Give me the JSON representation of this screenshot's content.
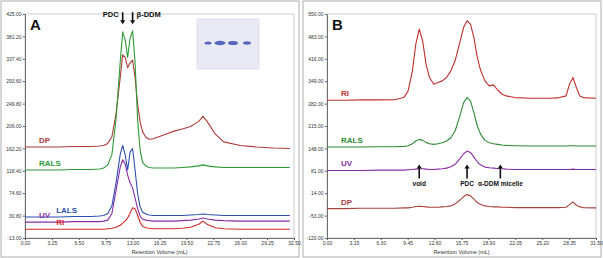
{
  "chart_data": [
    {
      "type": "line",
      "title": "A",
      "x_label": "Retention Volume (mL)",
      "x": [
        0,
        2,
        4,
        6,
        8,
        9,
        9.5,
        10,
        10.5,
        11,
        11.5,
        11.8,
        12.1,
        12.4,
        12.7,
        13,
        13.3,
        13.6,
        13.9,
        14.2,
        14.6,
        15,
        15.5,
        16,
        17,
        18,
        19,
        20,
        21,
        21.5,
        22,
        23,
        24,
        26,
        28,
        30,
        32
      ],
      "xlim": [
        0,
        32.5
      ],
      "xticks": [
        {
          "value": 0,
          "label": "0.00"
        },
        {
          "value": 3.25,
          "label": "3.25"
        },
        {
          "value": 6.5,
          "label": "6.50"
        },
        {
          "value": 9.75,
          "label": "9.75"
        },
        {
          "value": 13,
          "label": "13.00"
        },
        {
          "value": 16.25,
          "label": "16.25"
        },
        {
          "value": 19.5,
          "label": "19.50"
        },
        {
          "value": 22.75,
          "label": "22.75"
        },
        {
          "value": 26,
          "label": "26.00"
        },
        {
          "value": 29.25,
          "label": "29.25"
        },
        {
          "value": 32.5,
          "label": "32.50"
        }
      ],
      "ylim": [
        -13,
        425
      ],
      "yticks": [
        {
          "value": -13,
          "label": "-13.00"
        },
        {
          "value": 30.8,
          "label": "30.80"
        },
        {
          "value": 74.6,
          "label": "74.60"
        },
        {
          "value": 118.4,
          "label": "118.40"
        },
        {
          "value": 162.2,
          "label": "162.20"
        },
        {
          "value": 206,
          "label": "206.00"
        },
        {
          "value": 249.8,
          "label": "249.80"
        },
        {
          "value": 293.6,
          "label": "293.60"
        },
        {
          "value": 337.4,
          "label": "337.40"
        },
        {
          "value": 381.2,
          "label": "381.20"
        },
        {
          "value": 425,
          "label": "425.00"
        }
      ],
      "series": [
        {
          "name": "DP",
          "color": "#b03a3a",
          "values": [
            165,
            165,
            165,
            166,
            166,
            167,
            168,
            172,
            185,
            230,
            300,
            345,
            340,
            320,
            330,
            335,
            300,
            250,
            215,
            195,
            184,
            180,
            181,
            184,
            190,
            196,
            200,
            205,
            215,
            225,
            215,
            190,
            175,
            168,
            165,
            163,
            162
          ]
        },
        {
          "name": "RALS",
          "color": "#2e9a36",
          "values": [
            120,
            120,
            120,
            121,
            121,
            122,
            124,
            130,
            150,
            220,
            330,
            390,
            375,
            340,
            378,
            392,
            330,
            220,
            160,
            135,
            128,
            125,
            124,
            124,
            124,
            124,
            125,
            126,
            128,
            130,
            128,
            126,
            125,
            125,
            125,
            125,
            125
          ]
        },
        {
          "name": "UV",
          "color": "#8a2ca8",
          "values": [
            18,
            18,
            18,
            19,
            19,
            19,
            20,
            22,
            35,
            80,
            125,
            140,
            132,
            110,
            95,
            85,
            65,
            45,
            30,
            24,
            22,
            21,
            20,
            20,
            20,
            20,
            21,
            22,
            24,
            26,
            24,
            22,
            21,
            20,
            20,
            20,
            20
          ]
        },
        {
          "name": "LALS",
          "color": "#2f4fb0",
          "values": [
            28,
            28,
            28,
            29,
            29,
            30,
            31,
            35,
            50,
            95,
            150,
            168,
            150,
            120,
            155,
            162,
            120,
            75,
            48,
            38,
            34,
            32,
            31,
            31,
            31,
            31,
            31,
            32,
            33,
            34,
            33,
            32,
            31,
            31,
            31,
            31,
            31
          ]
        },
        {
          "name": "RI",
          "color": "#d42a2a",
          "values": [
            4,
            4,
            4,
            4,
            4,
            4,
            4,
            5,
            6,
            8,
            12,
            16,
            20,
            26,
            36,
            46,
            44,
            32,
            18,
            10,
            7,
            6,
            5,
            5,
            5,
            5,
            6,
            8,
            14,
            20,
            14,
            7,
            5,
            4,
            4,
            4,
            4
          ]
        }
      ],
      "annotations": [
        {
          "text": "PDC",
          "x": 11.8,
          "y": 405
        },
        {
          "text": "β-DDM",
          "x": 13.0,
          "y": 405
        }
      ]
    },
    {
      "type": "line",
      "title": "B",
      "x_label": "Retention Volume (mL)",
      "x": [
        0,
        2,
        4,
        6,
        8,
        9,
        9.5,
        10,
        10.4,
        10.8,
        11.2,
        11.6,
        12,
        12.5,
        13,
        13.5,
        14,
        14.5,
        15,
        15.5,
        16,
        16.4,
        16.8,
        17.2,
        17.6,
        18,
        18.5,
        19,
        19.5,
        20,
        20.5,
        21,
        22,
        24,
        26,
        27,
        28,
        28.4,
        28.8,
        29.2,
        29.6,
        30,
        31.5
      ],
      "xlim": [
        0,
        31.5
      ],
      "xticks": [
        {
          "value": 0,
          "label": "0.00"
        },
        {
          "value": 3.15,
          "label": "3.15"
        },
        {
          "value": 6.3,
          "label": "6.30"
        },
        {
          "value": 9.45,
          "label": "9.45"
        },
        {
          "value": 12.6,
          "label": "12.60"
        },
        {
          "value": 15.75,
          "label": "15.75"
        },
        {
          "value": 18.9,
          "label": "18.90"
        },
        {
          "value": 22.05,
          "label": "22.05"
        },
        {
          "value": 25.2,
          "label": "25.20"
        },
        {
          "value": 28.35,
          "label": "28.35"
        },
        {
          "value": 31.5,
          "label": "31.50"
        }
      ],
      "ylim": [
        -120,
        550
      ],
      "yticks": [
        {
          "value": -120,
          "label": "-120.00"
        },
        {
          "value": -53,
          "label": "-53.00"
        },
        {
          "value": 14,
          "label": "14.00"
        },
        {
          "value": 81,
          "label": "81.00"
        },
        {
          "value": 148,
          "label": "148.00"
        },
        {
          "value": 215,
          "label": "215.00"
        },
        {
          "value": 282,
          "label": "282.00"
        },
        {
          "value": 349,
          "label": "349.00"
        },
        {
          "value": 416,
          "label": "416.00"
        },
        {
          "value": 483,
          "label": "483.00"
        },
        {
          "value": 550,
          "label": "550.00"
        }
      ],
      "series": [
        {
          "name": "RI",
          "color": "#c0302e",
          "values": [
            292,
            292,
            293,
            293,
            294,
            300,
            320,
            380,
            460,
            505,
            470,
            400,
            360,
            340,
            345,
            350,
            360,
            380,
            410,
            460,
            510,
            530,
            520,
            480,
            420,
            380,
            350,
            335,
            338,
            322,
            310,
            305,
            300,
            298,
            298,
            299,
            305,
            340,
            360,
            330,
            305,
            300,
            298
          ]
        },
        {
          "name": "RALS",
          "color": "#2e8a36",
          "values": [
            152,
            152,
            152,
            153,
            153,
            154,
            156,
            162,
            170,
            175,
            172,
            166,
            162,
            160,
            162,
            165,
            170,
            180,
            200,
            240,
            285,
            300,
            290,
            255,
            215,
            190,
            172,
            165,
            162,
            160,
            158,
            157,
            156,
            155,
            155,
            155,
            155,
            156,
            156,
            155,
            155,
            155,
            155
          ]
        },
        {
          "name": "UV",
          "color": "#8a2ca8",
          "values": [
            82,
            82,
            82,
            83,
            83,
            83,
            84,
            85,
            86,
            87,
            87,
            86,
            85,
            85,
            86,
            87,
            89,
            93,
            100,
            115,
            132,
            140,
            136,
            122,
            108,
            98,
            92,
            90,
            89,
            88,
            87,
            86,
            85,
            85,
            85,
            85,
            85,
            85,
            86,
            85,
            85,
            85,
            85
          ]
        },
        {
          "name": "DP",
          "color": "#a8403c",
          "values": [
            -32,
            -32,
            -31,
            -31,
            -31,
            -30,
            -30,
            -28,
            -26,
            -25,
            -26,
            -27,
            -28,
            -28,
            -28,
            -27,
            -26,
            -24,
            -18,
            -8,
            4,
            10,
            6,
            -4,
            -14,
            -20,
            -24,
            -26,
            -27,
            -27,
            -28,
            -28,
            -29,
            -29,
            -29,
            -29,
            -28,
            -20,
            -12,
            -22,
            -27,
            -29,
            -30
          ]
        }
      ],
      "annotations": [
        {
          "text": "void",
          "x": 10.8,
          "y": 100
        },
        {
          "text": "PDC",
          "x": 16.4,
          "y": 100
        },
        {
          "text": "α-DDM micelle",
          "x": 20.3,
          "y": 100
        }
      ]
    }
  ]
}
